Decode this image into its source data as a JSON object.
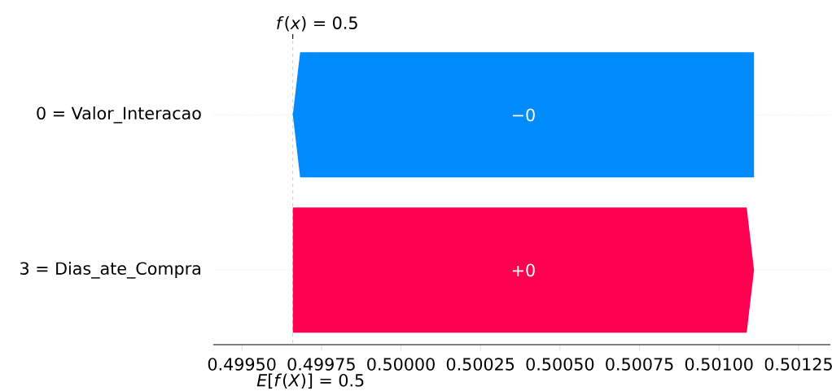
{
  "chart_data": {
    "type": "bar",
    "orientation": "horizontal",
    "categories": [
      "0 = Valor_Interacao",
      "3 = Dias_ate_Compra"
    ],
    "values": [
      -0.00145,
      0.00145
    ],
    "base": [
      0.50111,
      0.49966
    ],
    "colors": [
      "#008bfb",
      "#ff0051"
    ],
    "value_labels": [
      "−0",
      "+0"
    ],
    "xlim": [
      0.49941,
      0.50135
    ],
    "xticks": [
      {
        "value": 0.4995,
        "label": "0.49950"
      },
      {
        "value": 0.49975,
        "label": "0.49975"
      },
      {
        "value": 0.5,
        "label": "0.50000"
      },
      {
        "value": 0.50025,
        "label": "0.50025"
      },
      {
        "value": 0.5005,
        "label": "0.50050"
      },
      {
        "value": 0.50075,
        "label": "0.50075"
      },
      {
        "value": 0.501,
        "label": "0.50100"
      },
      {
        "value": 0.50125,
        "label": "0.50125"
      }
    ],
    "ref_lines": [
      {
        "axis": "x",
        "value": 0.49966,
        "label": "*f*(*x*) = 0.5",
        "color": "#bbbbbb",
        "line_style": "dashed"
      }
    ],
    "annotations": [
      "*E*[*f*(*X*)] = 0.5"
    ],
    "grid": "y"
  }
}
